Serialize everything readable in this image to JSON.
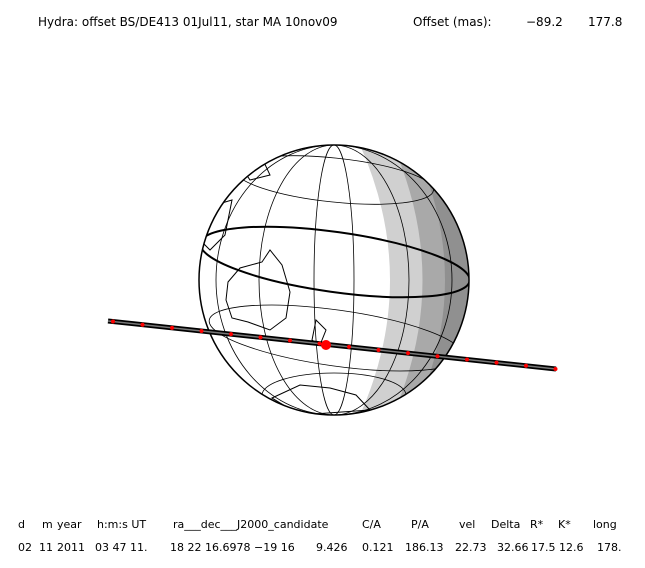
{
  "header": {
    "title": "Hydra: offset BS/DE413 01Jul11, star MA 10nov09",
    "offset_label": "Offset (mas):",
    "offset_ra": "−89.2",
    "offset_dec": "177.8"
  },
  "table": {
    "headers": [
      "d",
      "m",
      "year",
      "h:m:s UT",
      "ra___dec___J2000_candidate",
      "C/A",
      "P/A",
      "vel",
      "Delta",
      "R*",
      "K*",
      "long"
    ],
    "row": [
      "02",
      "11",
      "2011",
      "03 47 11.",
      "18 22 16.6978",
      "−19 16",
      "9.426",
      "0.121",
      "186.13",
      "22.73",
      "32.66",
      "17.5",
      "12.6",
      "178."
    ]
  }
}
